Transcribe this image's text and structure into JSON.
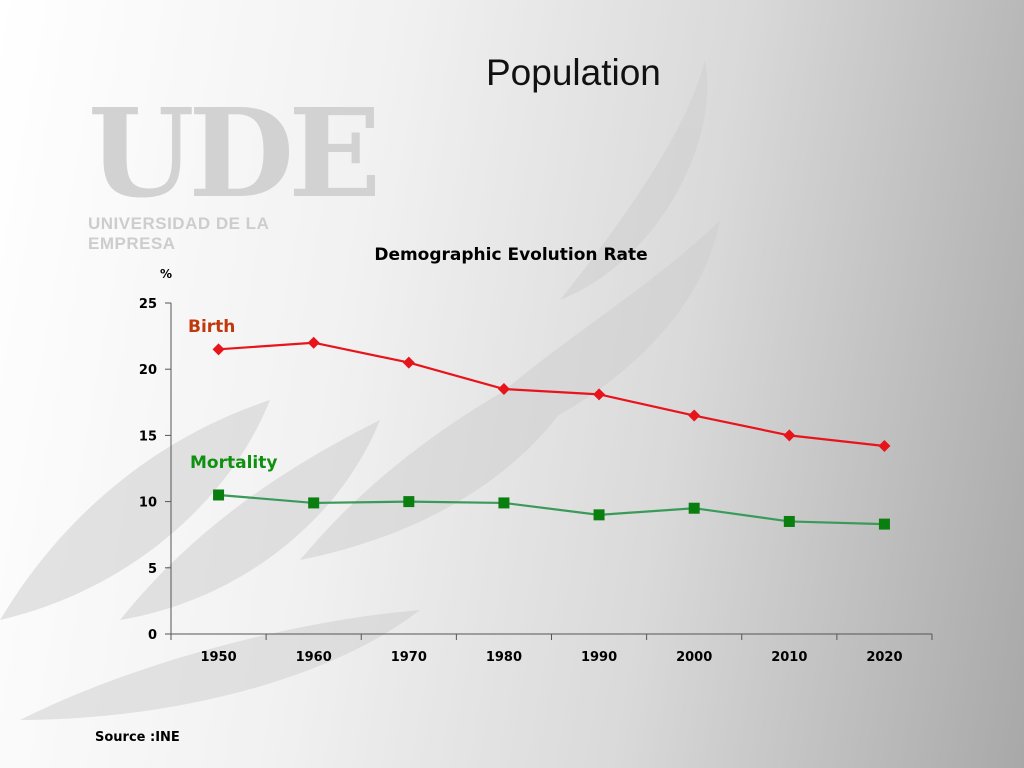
{
  "slide": {
    "title": "Population",
    "source": "Source :INE"
  },
  "logo": {
    "letters": "UDE",
    "subtitle": "UNIVERSIDAD DE LA EMPRESA"
  },
  "chart_data": {
    "type": "line",
    "title": "Demographic Evolution Rate",
    "ylabel": "%",
    "xlabel": "",
    "x": [
      "1950",
      "1960",
      "1970",
      "1980",
      "1990",
      "2000",
      "2010",
      "2020"
    ],
    "ylim": [
      0,
      25
    ],
    "yticks": [
      0,
      5,
      10,
      15,
      20,
      25
    ],
    "grid": false,
    "legend": "inline labels",
    "series": [
      {
        "name": "Birth",
        "color": "#e8141c",
        "marker": "diamond",
        "values": [
          21.5,
          22.0,
          20.5,
          18.5,
          18.1,
          16.5,
          15.0,
          14.2
        ]
      },
      {
        "name": "Mortality",
        "color": "#3a9a5a",
        "marker_color": "#0a7f10",
        "label_color": "#109010",
        "marker": "square",
        "values": [
          10.5,
          9.9,
          10.0,
          9.9,
          9.0,
          9.5,
          8.5,
          8.3
        ]
      }
    ],
    "label_colors": {
      "Birth": "#c0380c",
      "Mortality": "#109010"
    }
  }
}
